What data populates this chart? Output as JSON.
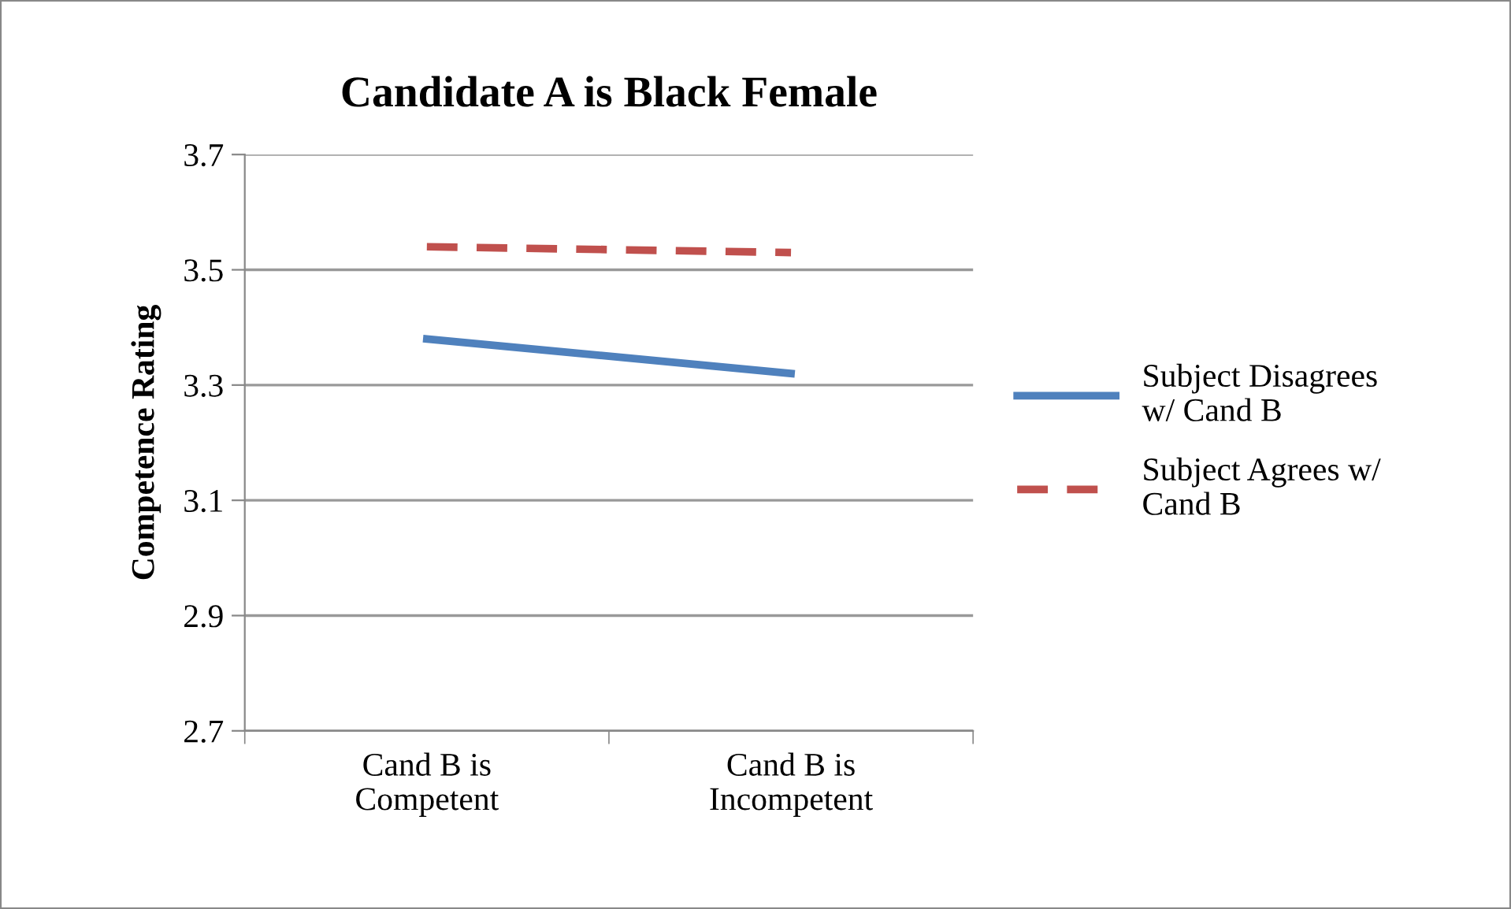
{
  "chart_data": {
    "type": "line",
    "title": "Candidate A is Black Female",
    "ylabel": "Competence Rating",
    "categories": [
      "Cand B is\nCompetent",
      "Cand B is\nIncompetent"
    ],
    "series": [
      {
        "name": "Subject Disagrees w/ Cand B",
        "color": "#4f81bd",
        "values": [
          3.38,
          3.32
        ],
        "line_style": "solid"
      },
      {
        "name": "Subject Agrees w/ Cand B",
        "color": "#c0504d",
        "values": [
          3.54,
          3.53
        ],
        "line_style": "dashed"
      }
    ],
    "ylim": [
      2.7,
      3.7
    ],
    "yticks": [
      2.7,
      2.9,
      3.1,
      3.3,
      3.5,
      3.7
    ],
    "grid": "y",
    "legend": "right",
    "marker": "none"
  }
}
